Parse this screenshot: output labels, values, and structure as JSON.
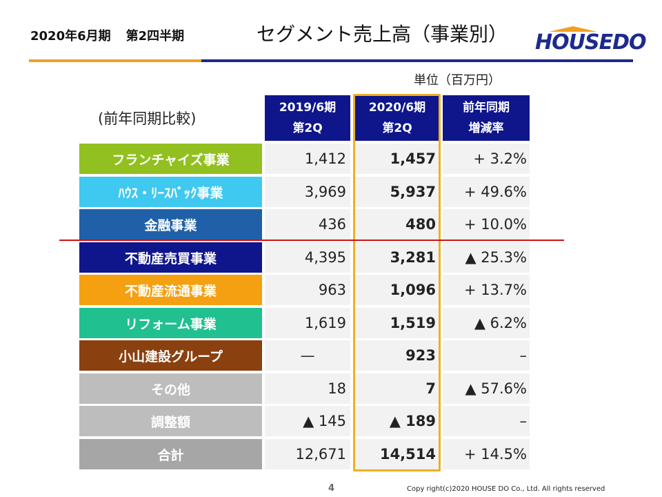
{
  "header": {
    "period": "2020年6月期",
    "quarter": "第2四半期",
    "title": "セグメント売上高（事業別）",
    "logo": "HOUSEDO"
  },
  "unit_label": "単位（百万円）",
  "compare_label": "(前年同期比較)",
  "columns": [
    {
      "line1": "2019/6期",
      "line2": "第2Q"
    },
    {
      "line1": "2020/6期",
      "line2": "第2Q"
    },
    {
      "line1": "前年同期",
      "line2": "増減率"
    }
  ],
  "rows": [
    {
      "label": "フランチャイズ事業",
      "color": "#92c020",
      "prev": "1,412",
      "curr": "1,457",
      "change": "+ 3.2%"
    },
    {
      "label": "ﾊｳｽ・ﾘｰｽﾊﾞｯｸ事業",
      "color": "#3fc8f0",
      "prev": "3,969",
      "curr": "5,937",
      "change": "+ 49.6%"
    },
    {
      "label": "金融事業",
      "color": "#2060a8",
      "prev": "436",
      "curr": "480",
      "change": "+ 10.0%"
    },
    {
      "label": "不動産売買事業",
      "color": "#0f168c",
      "prev": "4,395",
      "curr": "3,281",
      "change": "▲ 25.3%"
    },
    {
      "label": "不動産流通事業",
      "color": "#f5a010",
      "prev": "963",
      "curr": "1,096",
      "change": "+ 13.7%"
    },
    {
      "label": "リフォーム事業",
      "color": "#20c090",
      "prev": "1,619",
      "curr": "1,519",
      "change": "▲ 6.2%"
    },
    {
      "label": "小山建設グループ",
      "color": "#8b4010",
      "prev": "—",
      "curr": "923",
      "change": "–"
    },
    {
      "label": "その他",
      "color": "#bdbdbd",
      "prev": "18",
      "curr": "7",
      "change": "▲ 57.6%"
    },
    {
      "label": "調整額",
      "color": "#bdbdbd",
      "prev": "▲ 145",
      "curr": "▲ 189",
      "change": "–"
    },
    {
      "label": "合計",
      "color": "#a6a6a6",
      "prev": "12,671",
      "curr": "14,514",
      "change": "+ 14.5%"
    }
  ],
  "footer": {
    "page": "4",
    "copyright": "Copy right(c)2020  HOUSE DO Co., Ltd.  All rights reserved"
  }
}
